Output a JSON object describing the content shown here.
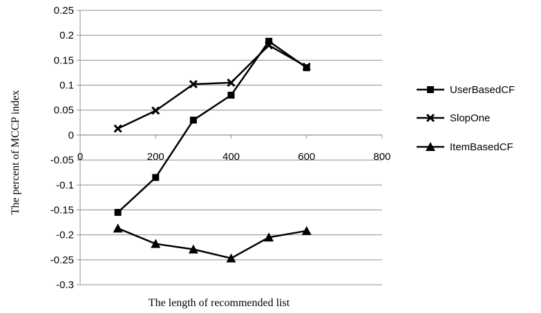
{
  "chart_data": {
    "type": "line",
    "xlabel": "The length of recommended list",
    "ylabel": "The percent of MCCP index",
    "xlim": [
      0,
      800
    ],
    "ylim": [
      -0.3,
      0.25
    ],
    "x_ticks": [
      0,
      200,
      400,
      600,
      800
    ],
    "x_tick_labels": [
      "0",
      "200",
      "400",
      "600",
      "800"
    ],
    "y_ticks": [
      0.25,
      0.2,
      0.15,
      0.1,
      0.05,
      0,
      -0.05,
      -0.1,
      -0.15,
      -0.2,
      -0.25,
      -0.3
    ],
    "y_tick_labels": [
      "0.25",
      "0.2",
      "0.15",
      "0.1",
      "0.05",
      "0",
      "-0.05",
      "-0.1",
      "-0.15",
      "-0.2",
      "-0.25",
      "-0.3"
    ],
    "grid": "horizontal",
    "legend_position": "right",
    "series": [
      {
        "name": "UserBasedCF",
        "marker": "square",
        "color": "#000000",
        "x": [
          100,
          200,
          300,
          400,
          500,
          600
        ],
        "y": [
          -0.155,
          -0.085,
          0.03,
          0.08,
          0.188,
          0.135
        ]
      },
      {
        "name": "SlopOne",
        "marker": "x",
        "color": "#000000",
        "x": [
          100,
          200,
          300,
          400,
          500,
          600
        ],
        "y": [
          0.013,
          0.049,
          0.102,
          0.105,
          0.18,
          0.137
        ]
      },
      {
        "name": "ItemBasedCF",
        "marker": "triangle",
        "color": "#000000",
        "x": [
          100,
          200,
          300,
          400,
          500,
          600
        ],
        "y": [
          -0.187,
          -0.218,
          -0.229,
          -0.247,
          -0.205,
          -0.192
        ]
      }
    ]
  }
}
